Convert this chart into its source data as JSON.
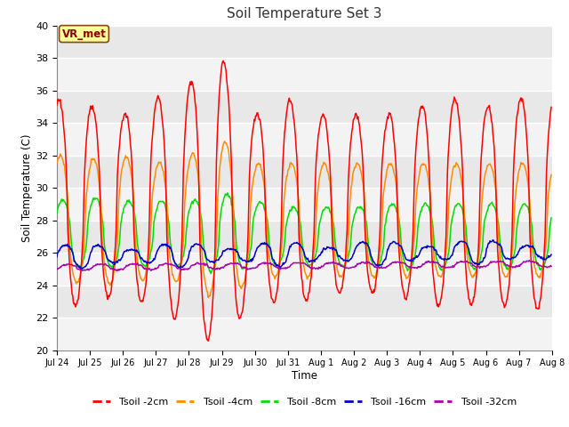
{
  "title": "Soil Temperature Set 3",
  "xlabel": "Time",
  "ylabel": "Soil Temperature (C)",
  "ylim": [
    20,
    40
  ],
  "yticks": [
    20,
    22,
    24,
    26,
    28,
    30,
    32,
    34,
    36,
    38,
    40
  ],
  "bg_color": "#e8e8e8",
  "grid_color": "#ffffff",
  "annotation_text": "VR_met",
  "annotation_color": "#8B0000",
  "annotation_bg": "#ffff99",
  "annotation_border": "#8B4513",
  "series_colors": {
    "Tsoil -2cm": "#ff0000",
    "Tsoil -4cm": "#ff8c00",
    "Tsoil -8cm": "#00dd00",
    "Tsoil -16cm": "#0000cc",
    "Tsoil -32cm": "#aa00aa"
  },
  "tick_labels": [
    "Jul 24",
    "Jul 25",
    "Jul 26",
    "Jul 27",
    "Jul 28",
    "Jul 29",
    "Jul 30",
    "Jul 31",
    "Aug 1",
    "Aug 2",
    "Aug 3",
    "Aug 4",
    "Aug 5",
    "Aug 6",
    "Aug 7",
    "Aug 8"
  ],
  "num_days": 15,
  "samples_per_day": 48
}
